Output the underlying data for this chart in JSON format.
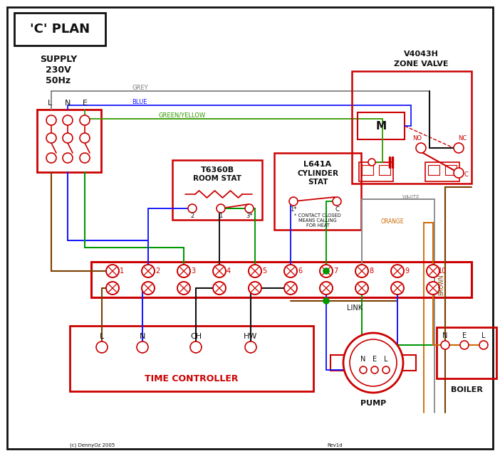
{
  "bg": "#ffffff",
  "red": "#cc0000",
  "blue": "#1a1aff",
  "green": "#009900",
  "brown": "#7b3f00",
  "grey": "#808080",
  "orange": "#cc6600",
  "black": "#111111",
  "gyl": "#339900",
  "white_w": "#888888",
  "title": "'C' PLAN",
  "zone_valve_l1": "V4043H",
  "zone_valve_l2": "ZONE VALVE",
  "room_stat_l1": "T6360B",
  "room_stat_l2": "ROOM STAT",
  "cyl_stat_l1": "L641A",
  "cyl_stat_l2": "CYLINDER",
  "cyl_stat_l3": "STAT",
  "contact_note": "* CONTACT CLOSED\nMEANS CALLING\nFOR HEAT",
  "tc_label": "TIME CONTROLLER",
  "pump_label": "PUMP",
  "boiler_label": "BOILER",
  "supply_label": "SUPPLY\n230V\n50Hz",
  "copyright": "(c) DennyOz 2005",
  "rev": "Rev1d",
  "link_label": "LINK",
  "grey_label": "GREY",
  "blue_label": "BLUE",
  "gyl_label": "GREEN/YELLOW",
  "brown_label": "BROWN",
  "white_label": "WHITE",
  "orange_label": "ORANGE",
  "lne": [
    "L",
    "N",
    "E"
  ]
}
